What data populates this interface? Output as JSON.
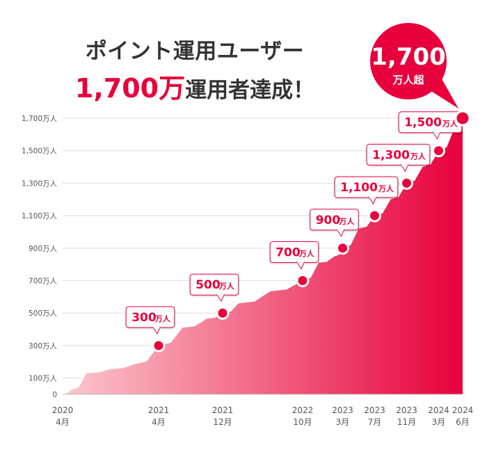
{
  "header": {
    "title_line1": "ポイント運用ユーザー",
    "title_line2_highlight": "1,700万",
    "title_line2_rest": "運用者達成！"
  },
  "badge": {
    "value": "1,700",
    "unit": "万人超",
    "color": "#e8003c"
  },
  "colors": {
    "accent": "#e8003c",
    "area_light": "#fbc8cd",
    "marker": "#e8003c",
    "axis_text": "#555555",
    "grid": "#dddddd"
  },
  "chart_data": {
    "type": "area",
    "title": "",
    "y_unit_label": "万人",
    "ylim": [
      0,
      1750
    ],
    "yticks": [
      {
        "value": 0,
        "label": "0"
      },
      {
        "value": 100,
        "label": "100万人"
      },
      {
        "value": 300,
        "label": "300万人"
      },
      {
        "value": 500,
        "label": "500万人"
      },
      {
        "value": 700,
        "label": "700万人"
      },
      {
        "value": 900,
        "label": "900万人"
      },
      {
        "value": 1100,
        "label": "1,100万人"
      },
      {
        "value": 1300,
        "label": "1,300万人"
      },
      {
        "value": 1500,
        "label": "1,500万人"
      },
      {
        "value": 1700,
        "label": "1,700万人"
      }
    ],
    "xlim": [
      "2020-04",
      "2024-06"
    ],
    "xticks": [
      {
        "date": "2020-04",
        "year": "2020",
        "month": "4月"
      },
      {
        "date": "2021-04",
        "year": "2021",
        "month": "4月"
      },
      {
        "date": "2021-12",
        "year": "2021",
        "month": "12月"
      },
      {
        "date": "2022-10",
        "year": "2022",
        "month": "10月"
      },
      {
        "date": "2023-03",
        "year": "2023",
        "month": "3月"
      },
      {
        "date": "2023-07",
        "year": "2023",
        "month": "7月"
      },
      {
        "date": "2023-11",
        "year": "2023",
        "month": "11月"
      },
      {
        "date": "2024-03",
        "year": "2024",
        "month": "3月"
      },
      {
        "date": "2024-06",
        "year": "2024",
        "month": "6月"
      }
    ],
    "series": [
      {
        "points": [
          {
            "x": "2020-04",
            "y": 0
          },
          {
            "x": "2020-05",
            "y": 25
          },
          {
            "x": "2020-07",
            "y": 130
          },
          {
            "x": "2020-10",
            "y": 155
          },
          {
            "x": "2021-01",
            "y": 185
          },
          {
            "x": "2021-04",
            "y": 300
          },
          {
            "x": "2021-07",
            "y": 410
          },
          {
            "x": "2021-10",
            "y": 465
          },
          {
            "x": "2021-12",
            "y": 500
          },
          {
            "x": "2022-02",
            "y": 560
          },
          {
            "x": "2022-06",
            "y": 635
          },
          {
            "x": "2022-10",
            "y": 700
          },
          {
            "x": "2022-12",
            "y": 810
          },
          {
            "x": "2023-02",
            "y": 850
          },
          {
            "x": "2023-03",
            "y": 900
          },
          {
            "x": "2023-05",
            "y": 1020
          },
          {
            "x": "2023-07",
            "y": 1100
          },
          {
            "x": "2023-09",
            "y": 1200
          },
          {
            "x": "2023-11",
            "y": 1300
          },
          {
            "x": "2024-01",
            "y": 1400
          },
          {
            "x": "2024-03",
            "y": 1500
          },
          {
            "x": "2024-05",
            "y": 1640
          },
          {
            "x": "2024-06",
            "y": 1700
          }
        ]
      }
    ],
    "milestones": [
      {
        "x": "2021-04",
        "y": 300,
        "value": "300",
        "unit": "万人"
      },
      {
        "x": "2021-12",
        "y": 500,
        "value": "500",
        "unit": "万人"
      },
      {
        "x": "2022-10",
        "y": 700,
        "value": "700",
        "unit": "万人"
      },
      {
        "x": "2023-03",
        "y": 900,
        "value": "900",
        "unit": "万人"
      },
      {
        "x": "2023-07",
        "y": 1100,
        "value": "1,100",
        "unit": "万人"
      },
      {
        "x": "2023-11",
        "y": 1300,
        "value": "1,300",
        "unit": "万人"
      },
      {
        "x": "2024-03",
        "y": 1500,
        "value": "1,500",
        "unit": "万人"
      },
      {
        "x": "2024-06",
        "y": 1700,
        "value": "",
        "unit": ""
      }
    ],
    "grid": true,
    "legend": "none"
  }
}
